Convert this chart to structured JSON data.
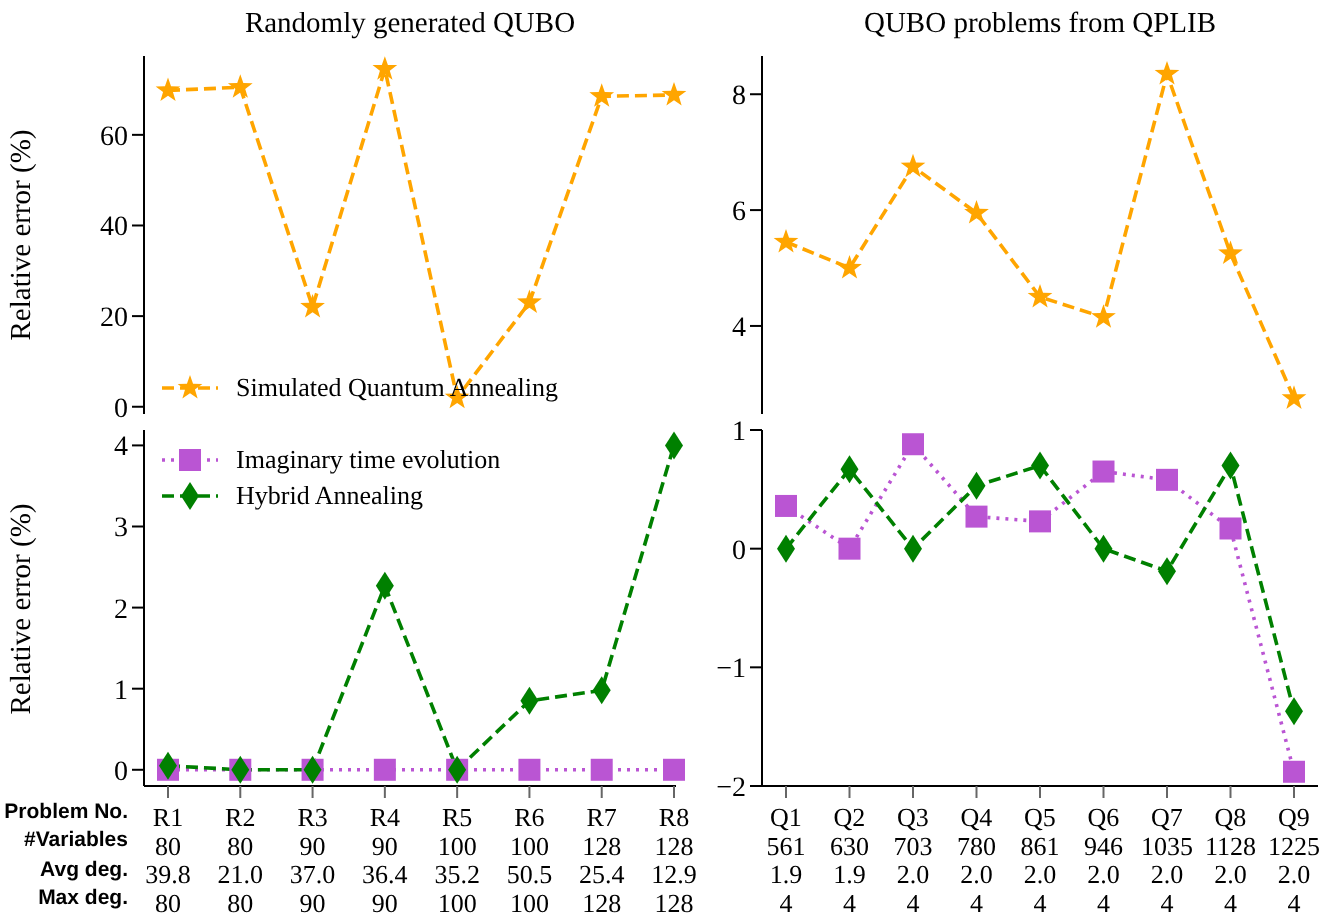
{
  "chart_data": [
    {
      "type": "line",
      "title": "Randomly generated QUBO",
      "ylabel": "Relative error (%)",
      "categories": [
        null,
        null,
        null,
        null,
        null,
        null,
        null,
        null
      ],
      "ylim": [
        -1.6,
        77.4
      ],
      "yticks": [
        0,
        20,
        40,
        60
      ],
      "tick_labels": "y",
      "legend": "bottom left",
      "grid": false,
      "series": [
        {
          "name": "Simulated Quantum Annealing",
          "color": "#ffa500",
          "marker": "star",
          "line_style": "dashed",
          "values": [
            69.8,
            70.5,
            22,
            74.5,
            2,
            23,
            68.5,
            68.8
          ]
        }
      ]
    },
    {
      "type": "line",
      "title": "QUBO problems from QPLIB",
      "categories": [
        null,
        null,
        null,
        null,
        null,
        null,
        null,
        null,
        null
      ],
      "ylim": [
        2.48,
        8.66
      ],
      "yticks": [
        4,
        6,
        8
      ],
      "tick_labels": "y",
      "grid": false,
      "series": [
        {
          "color": "#ffa500",
          "marker": "star",
          "line_style": "dashed",
          "values": [
            5.45,
            5.0,
            6.75,
            5.95,
            4.5,
            4.15,
            8.35,
            5.25,
            2.75
          ]
        }
      ]
    },
    {
      "type": "line",
      "ylabel": "Relative error (%)",
      "categories": [
        "R1\n80\n39.8\n80",
        "R2\n80\n21.0\n80",
        "R3\n90\n37.0\n90",
        "R4\n90\n36.4\n90",
        "R5\n100\n35.2\n100",
        "R6\n100\n50.5\n100",
        "R7\n128\n25.4\n128",
        "R8\n128\n12.9\n128"
      ],
      "ylim": [
        -0.2,
        4.19
      ],
      "yticks": [
        0,
        1,
        2,
        3,
        4
      ],
      "legend": "top left",
      "grid": false,
      "annotations": [
        "Problem No.",
        "#Variables",
        "Avg deg.",
        "Max deg."
      ],
      "series": [
        {
          "name": "Imaginary time evolution",
          "color": "#ba55d3",
          "marker": "square",
          "line_style": "dotted",
          "values": [
            0,
            0,
            0,
            0,
            0,
            0,
            0,
            0
          ]
        },
        {
          "name": "Hybrid Annealing",
          "color": "#008000",
          "marker": "diamond",
          "line_style": "dashed",
          "values": [
            0.05,
            0,
            0,
            2.27,
            0,
            0.85,
            0.98,
            4.0
          ]
        }
      ]
    },
    {
      "type": "line",
      "categories": [
        "Q1\n561\n1.9\n4",
        "Q2\n630\n1.9\n4",
        "Q3\n703\n2.0\n4",
        "Q4\n780\n2.0\n4",
        "Q5\n861\n2.0\n4",
        "Q6\n946\n2.0\n4",
        "Q7\n1035\n2.0\n4",
        "Q8\n1128\n2.0\n4",
        "Q9\n1225\n2.0\n4"
      ],
      "ylim": [
        -2,
        1
      ],
      "yticks": [
        {
          "value": -2,
          "label": "−2"
        },
        {
          "value": -1,
          "label": "−1"
        },
        0,
        1
      ],
      "grid": false,
      "series": [
        {
          "color": "#ba55d3",
          "marker": "square",
          "line_style": "dotted",
          "values": [
            0.36,
            0,
            0.88,
            0.27,
            0.23,
            0.65,
            0.58,
            0.17,
            -1.88
          ]
        },
        {
          "color": "#008000",
          "marker": "diamond",
          "line_style": "dashed",
          "values": [
            0,
            0.67,
            0,
            0.53,
            0.7,
            0,
            -0.19,
            0.7,
            -1.37
          ]
        }
      ]
    }
  ]
}
